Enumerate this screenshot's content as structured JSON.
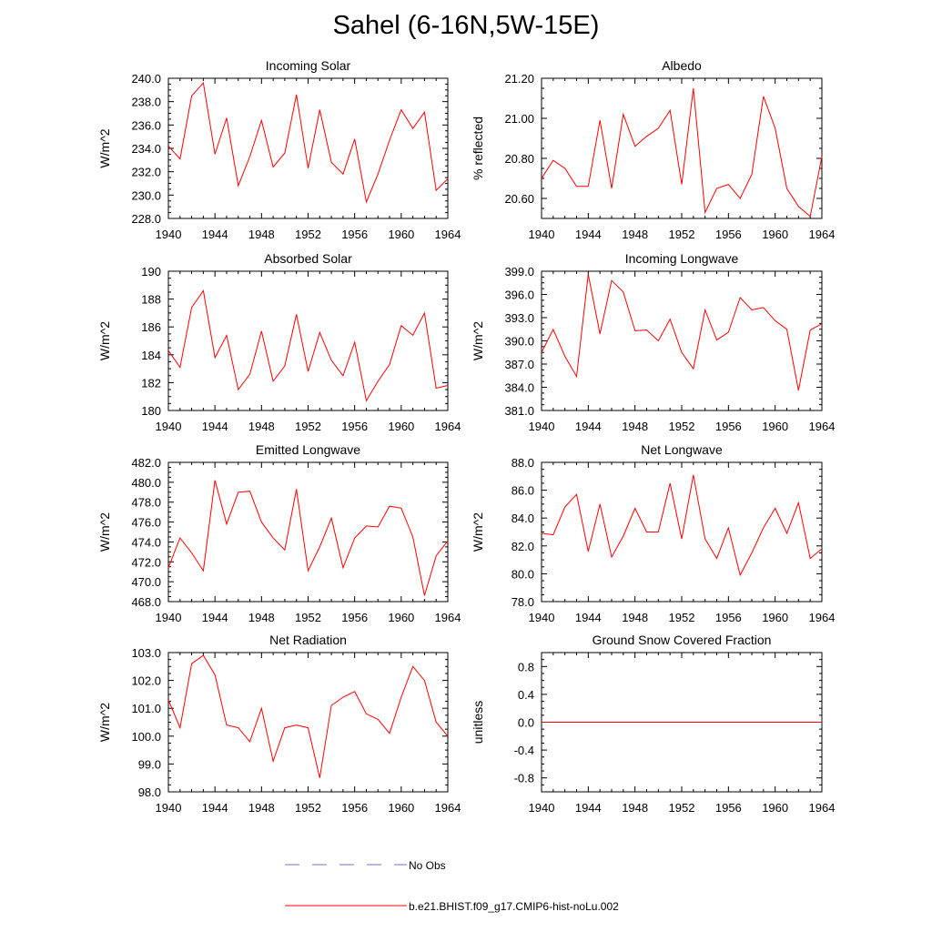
{
  "title": "Sahel (6-16N,5W-15E)",
  "colors": {
    "model": "#ff0000",
    "obs": "#6f6fc4",
    "axis": "#000000"
  },
  "legend": [
    {
      "label": "No Obs",
      "style": "dashed",
      "color": "#6f6fc4"
    },
    {
      "label": "b.e21.BHIST.f09_g17.CMIP6-hist-noLu.002",
      "style": "solid",
      "color": "#ff0000"
    }
  ],
  "chart_data": [
    {
      "type": "line",
      "title": "Incoming Solar",
      "ylabel": "W/m^2",
      "xlim": [
        1940,
        1964
      ],
      "ylim": [
        228,
        240
      ],
      "xticks": [
        "1940",
        "1944",
        "1948",
        "1952",
        "1956",
        "1960",
        "1964"
      ],
      "yticks": [
        {
          "v": 240,
          "l": "240.0"
        },
        {
          "v": 238,
          "l": "238.0"
        },
        {
          "v": 236,
          "l": "236.0"
        },
        {
          "v": 234,
          "l": "234.0"
        },
        {
          "v": 232,
          "l": "232.0"
        },
        {
          "v": 230,
          "l": "230.0"
        },
        {
          "v": 228,
          "l": "228.0"
        }
      ],
      "x": [
        1940,
        1941,
        1942,
        1943,
        1944,
        1945,
        1946,
        1947,
        1948,
        1949,
        1950,
        1951,
        1952,
        1953,
        1954,
        1955,
        1956,
        1957,
        1958,
        1959,
        1960,
        1961,
        1962,
        1963,
        1964
      ],
      "series": [
        {
          "values": [
            234.2,
            233.1,
            238.5,
            239.6,
            233.5,
            236.6,
            230.8,
            233.3,
            236.4,
            232.4,
            233.6,
            238.6,
            232.3,
            237.3,
            232.8,
            231.8,
            234.8,
            229.4,
            231.8,
            234.7,
            237.3,
            235.7,
            237.1,
            230.4,
            231.4
          ]
        }
      ]
    },
    {
      "type": "line",
      "title": "Albedo",
      "ylabel": "% reflected",
      "xlim": [
        1940,
        1964
      ],
      "ylim": [
        20.5,
        21.2
      ],
      "xticks": [
        "1940",
        "1944",
        "1948",
        "1952",
        "1956",
        "1960",
        "1964"
      ],
      "yticks": [
        {
          "v": 21.2,
          "l": "21.20"
        },
        {
          "v": 21.0,
          "l": "21.00"
        },
        {
          "v": 20.8,
          "l": "20.80"
        },
        {
          "v": 20.6,
          "l": "20.60"
        }
      ],
      "x": [
        1940,
        1941,
        1942,
        1943,
        1944,
        1945,
        1946,
        1947,
        1948,
        1949,
        1950,
        1951,
        1952,
        1953,
        1954,
        1955,
        1956,
        1957,
        1958,
        1959,
        1960,
        1961,
        1962,
        1963,
        1964
      ],
      "series": [
        {
          "values": [
            20.7,
            20.79,
            20.75,
            20.66,
            20.66,
            20.99,
            20.65,
            21.02,
            20.86,
            20.91,
            20.95,
            21.04,
            20.67,
            21.15,
            20.53,
            20.65,
            20.67,
            20.6,
            20.72,
            21.11,
            20.95,
            20.65,
            20.56,
            20.51,
            20.81
          ]
        }
      ]
    },
    {
      "type": "line",
      "title": "Absorbed Solar",
      "ylabel": "W/m^2",
      "xlim": [
        1940,
        1964
      ],
      "ylim": [
        180,
        190
      ],
      "xticks": [
        "1940",
        "1944",
        "1948",
        "1952",
        "1956",
        "1960",
        "1964"
      ],
      "yticks": [
        {
          "v": 190,
          "l": "190"
        },
        {
          "v": 188,
          "l": "188"
        },
        {
          "v": 186,
          "l": "186"
        },
        {
          "v": 184,
          "l": "184"
        },
        {
          "v": 182,
          "l": "182"
        },
        {
          "v": 180,
          "l": "180"
        }
      ],
      "x": [
        1940,
        1941,
        1942,
        1943,
        1944,
        1945,
        1946,
        1947,
        1948,
        1949,
        1950,
        1951,
        1952,
        1953,
        1954,
        1955,
        1956,
        1957,
        1958,
        1959,
        1960,
        1961,
        1962,
        1963,
        1964
      ],
      "series": [
        {
          "values": [
            184.3,
            183.1,
            187.4,
            188.6,
            183.8,
            185.4,
            181.5,
            182.6,
            185.7,
            182.1,
            183.2,
            186.9,
            182.8,
            185.6,
            183.6,
            182.5,
            184.9,
            180.7,
            182.1,
            183.3,
            186.1,
            185.4,
            187.0,
            181.6,
            181.8
          ]
        }
      ]
    },
    {
      "type": "line",
      "title": "Incoming Longwave",
      "ylabel": "W/m^2",
      "xlim": [
        1940,
        1964
      ],
      "ylim": [
        381,
        399
      ],
      "xticks": [
        "1940",
        "1944",
        "1948",
        "1952",
        "1956",
        "1960",
        "1964"
      ],
      "yticks": [
        {
          "v": 399,
          "l": "399.0"
        },
        {
          "v": 396,
          "l": "396.0"
        },
        {
          "v": 393,
          "l": "393.0"
        },
        {
          "v": 390,
          "l": "390.0"
        },
        {
          "v": 387,
          "l": "387.0"
        },
        {
          "v": 384,
          "l": "384.0"
        },
        {
          "v": 381,
          "l": "381.0"
        }
      ],
      "x": [
        1940,
        1941,
        1942,
        1943,
        1944,
        1945,
        1946,
        1947,
        1948,
        1949,
        1950,
        1951,
        1952,
        1953,
        1954,
        1955,
        1956,
        1957,
        1958,
        1959,
        1960,
        1961,
        1962,
        1963,
        1964
      ],
      "series": [
        {
          "values": [
            388.5,
            391.5,
            388.0,
            385.4,
            398.6,
            390.9,
            397.8,
            396.3,
            391.3,
            391.4,
            390.0,
            392.8,
            388.5,
            386.4,
            394.0,
            390.1,
            391.1,
            395.6,
            394.0,
            394.3,
            392.6,
            391.5,
            383.6,
            391.4,
            392.2
          ]
        }
      ]
    },
    {
      "type": "line",
      "title": "Emitted Longwave",
      "ylabel": "W/m^2",
      "xlim": [
        1940,
        1964
      ],
      "ylim": [
        468,
        482
      ],
      "xticks": [
        "1940",
        "1944",
        "1948",
        "1952",
        "1956",
        "1960",
        "1964"
      ],
      "yticks": [
        {
          "v": 482,
          "l": "482.0"
        },
        {
          "v": 480,
          "l": "480.0"
        },
        {
          "v": 478,
          "l": "478.0"
        },
        {
          "v": 476,
          "l": "476.0"
        },
        {
          "v": 474,
          "l": "474.0"
        },
        {
          "v": 472,
          "l": "472.0"
        },
        {
          "v": 470,
          "l": "470.0"
        },
        {
          "v": 468,
          "l": "468.0"
        }
      ],
      "x": [
        1940,
        1941,
        1942,
        1943,
        1944,
        1945,
        1946,
        1947,
        1948,
        1949,
        1950,
        1951,
        1952,
        1953,
        1954,
        1955,
        1956,
        1957,
        1958,
        1959,
        1960,
        1961,
        1962,
        1963,
        1964
      ],
      "series": [
        {
          "values": [
            471.4,
            474.4,
            472.9,
            471.1,
            480.2,
            475.8,
            479.0,
            479.1,
            476.0,
            474.4,
            473.2,
            479.3,
            471.1,
            473.5,
            476.4,
            471.4,
            474.4,
            475.6,
            475.5,
            477.6,
            477.4,
            474.5,
            468.6,
            472.6,
            474.1
          ]
        }
      ]
    },
    {
      "type": "line",
      "title": "Net Longwave",
      "ylabel": "W/m^2",
      "xlim": [
        1940,
        1964
      ],
      "ylim": [
        78,
        88
      ],
      "xticks": [
        "1940",
        "1944",
        "1948",
        "1952",
        "1956",
        "1960",
        "1964"
      ],
      "yticks": [
        {
          "v": 88,
          "l": "88.0"
        },
        {
          "v": 86,
          "l": "86.0"
        },
        {
          "v": 84,
          "l": "84.0"
        },
        {
          "v": 82,
          "l": "82.0"
        },
        {
          "v": 80,
          "l": "80.0"
        },
        {
          "v": 78,
          "l": "78.0"
        }
      ],
      "x": [
        1940,
        1941,
        1942,
        1943,
        1944,
        1945,
        1946,
        1947,
        1948,
        1949,
        1950,
        1951,
        1952,
        1953,
        1954,
        1955,
        1956,
        1957,
        1958,
        1959,
        1960,
        1961,
        1962,
        1963,
        1964
      ],
      "series": [
        {
          "values": [
            82.9,
            82.8,
            84.8,
            85.7,
            81.6,
            85.0,
            81.2,
            82.7,
            84.7,
            83.0,
            83.0,
            86.5,
            82.5,
            87.1,
            82.5,
            81.1,
            83.3,
            79.9,
            81.5,
            83.3,
            84.7,
            82.9,
            85.1,
            81.1,
            81.8
          ]
        }
      ]
    },
    {
      "type": "line",
      "title": "Net Radiation",
      "ylabel": "W/m^2",
      "xlim": [
        1940,
        1964
      ],
      "ylim": [
        98,
        103
      ],
      "xticks": [
        "1940",
        "1944",
        "1948",
        "1952",
        "1956",
        "1960",
        "1964"
      ],
      "yticks": [
        {
          "v": 103,
          "l": "103.0"
        },
        {
          "v": 102,
          "l": "102.0"
        },
        {
          "v": 101,
          "l": "101.0"
        },
        {
          "v": 100,
          "l": "100.0"
        },
        {
          "v": 99,
          "l": "99.0"
        },
        {
          "v": 98,
          "l": "98.0"
        }
      ],
      "x": [
        1940,
        1941,
        1942,
        1943,
        1944,
        1945,
        1946,
        1947,
        1948,
        1949,
        1950,
        1951,
        1952,
        1953,
        1954,
        1955,
        1956,
        1957,
        1958,
        1959,
        1960,
        1961,
        1962,
        1963,
        1964
      ],
      "series": [
        {
          "values": [
            101.3,
            100.3,
            102.6,
            102.9,
            102.2,
            100.4,
            100.3,
            99.8,
            101.0,
            99.1,
            100.3,
            100.4,
            100.3,
            98.5,
            101.1,
            101.4,
            101.6,
            100.8,
            100.6,
            100.1,
            101.4,
            102.5,
            102.0,
            100.5,
            100.0
          ]
        }
      ]
    },
    {
      "type": "line",
      "title": "Ground Snow Covered Fraction",
      "ylabel": "unitless",
      "xlim": [
        1940,
        1964
      ],
      "ylim": [
        -1,
        1
      ],
      "xticks": [
        "1940",
        "1944",
        "1948",
        "1952",
        "1956",
        "1960",
        "1964"
      ],
      "yticks": [
        {
          "v": 0.8,
          "l": "0.8"
        },
        {
          "v": 0.4,
          "l": "0.4"
        },
        {
          "v": 0.0,
          "l": "0.0"
        },
        {
          "v": -0.4,
          "l": "-0.4"
        },
        {
          "v": -0.8,
          "l": "-0.8"
        }
      ],
      "x": [
        1940,
        1941,
        1942,
        1943,
        1944,
        1945,
        1946,
        1947,
        1948,
        1949,
        1950,
        1951,
        1952,
        1953,
        1954,
        1955,
        1956,
        1957,
        1958,
        1959,
        1960,
        1961,
        1962,
        1963,
        1964
      ],
      "series": [
        {
          "values": [
            0,
            0,
            0,
            0,
            0,
            0,
            0,
            0,
            0,
            0,
            0,
            0,
            0,
            0,
            0,
            0,
            0,
            0,
            0,
            0,
            0,
            0,
            0,
            0,
            0
          ]
        }
      ]
    }
  ]
}
